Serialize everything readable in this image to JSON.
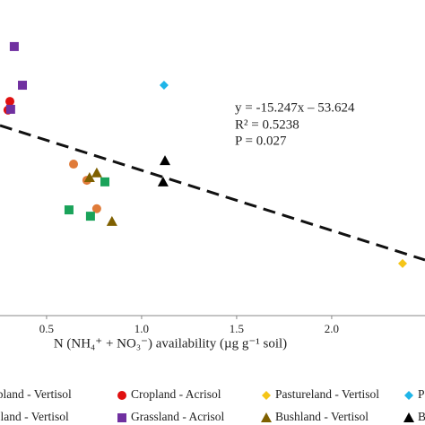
{
  "chart_data": {
    "type": "scatter",
    "x_label": "N (NH₄⁺ + NO₃⁻) availability (µg g⁻¹ soil)",
    "annotations": [
      "y = -15.247x – 53.624",
      "R² = 0.5238",
      "P = 0.027"
    ],
    "trendline": {
      "slope": -15.247,
      "intercept": -53.624,
      "color": "#111111"
    },
    "xlim": [
      0.255,
      2.491
    ],
    "ylim": [
      -105.7,
      -25.7
    ],
    "xticks": [
      0.5,
      {
        "value": 1,
        "label": "1.0"
      },
      1.5,
      {
        "value": 2,
        "label": "2.0"
      }
    ],
    "series": [
      {
        "name": "opland - Vertisol",
        "color": "#e07b39",
        "marker": "circle",
        "x": [
          0.642,
          0.712,
          0.764
        ],
        "values": [
          -67.3,
          -71.4,
          -78.6
        ]
      },
      {
        "name": "Cropland - Acrisol",
        "color": "#e01010",
        "marker": "circle",
        "x": [
          0.307,
          0.297
        ],
        "values": [
          -51.4,
          -53.6
        ]
      },
      {
        "name": "Pastureland - Vertisol",
        "color": "#f5c518",
        "marker": "diamond",
        "x": [
          2.373
        ],
        "values": [
          -92.5
        ]
      },
      {
        "name": "Pa",
        "color": "#1fb5e8",
        "marker": "diamond",
        "x": [
          1.118
        ],
        "values": [
          -47.3
        ]
      },
      {
        "name": "ssland - Vertisol",
        "color": "#1aa35a",
        "marker": "square",
        "x": [
          0.618,
          0.731,
          0.807
        ],
        "values": [
          -78.9,
          -80.5,
          -71.8
        ]
      },
      {
        "name": "Grassland - Acrisol",
        "color": "#7030a0",
        "marker": "square",
        "x": [
          0.33,
          0.373,
          0.311
        ],
        "values": [
          -37.5,
          -47.3,
          -53.4
        ]
      },
      {
        "name": "Bushland - Vertisol",
        "color": "#7f6000",
        "marker": "triangle",
        "x": [
          0.726,
          0.764,
          0.844
        ],
        "values": [
          -70.7,
          -69.5,
          -81.8
        ]
      },
      {
        "name": "B",
        "color": "#000000",
        "marker": "triangle",
        "x": [
          1.123,
          1.113
        ],
        "values": [
          -66.4,
          -71.8
        ]
      }
    ]
  }
}
